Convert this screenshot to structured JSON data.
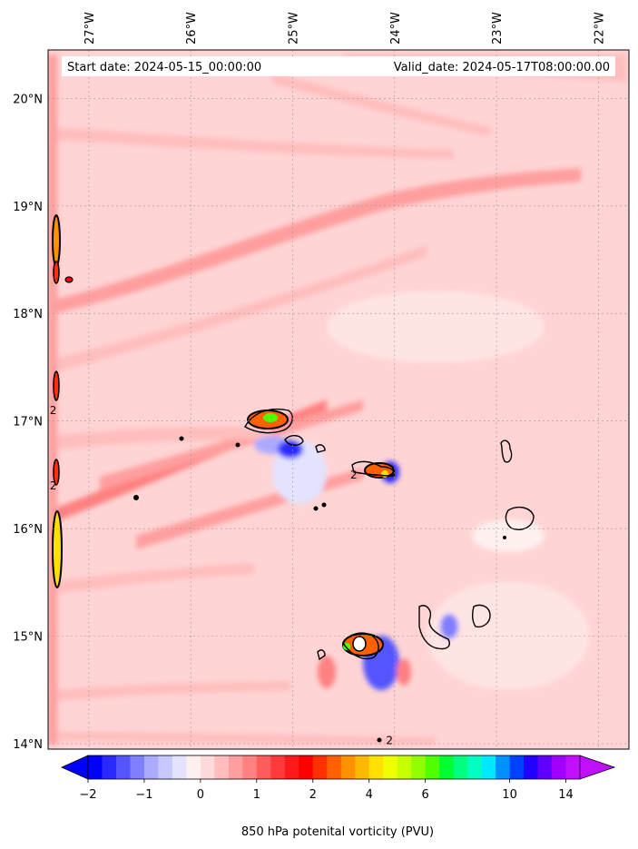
{
  "chart_data": {
    "type": "heatmap",
    "title": "",
    "header_left": "Start date: 2024-05-15_00:00:00",
    "header_right": "Valid_date: 2024-05-17T08:00:00.00",
    "colorbar_label": "850 hPa potenital vorticity (PVU)",
    "x_ticks": [
      {
        "value": -27,
        "label": "27°W"
      },
      {
        "value": -26,
        "label": "26°W"
      },
      {
        "value": -25,
        "label": "25°W"
      },
      {
        "value": -24,
        "label": "24°W"
      },
      {
        "value": -23,
        "label": "23°W"
      },
      {
        "value": -22,
        "label": "22°W"
      }
    ],
    "y_ticks": [
      {
        "value": 20,
        "label": "20°N"
      },
      {
        "value": 19,
        "label": "19°N"
      },
      {
        "value": 18,
        "label": "18°N"
      },
      {
        "value": 17,
        "label": "17°N"
      },
      {
        "value": 16,
        "label": "16°N"
      },
      {
        "value": 15,
        "label": "15°N"
      },
      {
        "value": 14,
        "label": "14°N"
      }
    ],
    "xlim": [
      -27.4,
      -21.7
    ],
    "ylim": [
      13.95,
      20.45
    ],
    "grid": true,
    "colorbar": {
      "levels": [
        -2,
        -1.75,
        -1.5,
        -1.25,
        -1,
        -0.75,
        -0.5,
        -0.25,
        0,
        0.25,
        0.5,
        0.75,
        1,
        1.25,
        1.5,
        1.75,
        2,
        2.5,
        3,
        3.5,
        4,
        4.5,
        5,
        5.5,
        6,
        6.5,
        7,
        7.5,
        8,
        9,
        10,
        11,
        12,
        13,
        14,
        15
      ],
      "colors": [
        "#0000ff",
        "#2a2aff",
        "#5555ff",
        "#7f7fff",
        "#aaaaff",
        "#c8c8ff",
        "#e3e3ff",
        "#fff0f0",
        "#ffdada",
        "#ffbdbd",
        "#ff9e9e",
        "#ff8080",
        "#ff5c5c",
        "#ff3a3a",
        "#ff1a1a",
        "#ff0000",
        "#ff3000",
        "#ff6000",
        "#ff9000",
        "#ffb800",
        "#ffe000",
        "#f0ff00",
        "#c8ff00",
        "#90ff00",
        "#50ff00",
        "#00ff30",
        "#00ff80",
        "#00ffc0",
        "#00e8ff",
        "#0090ff",
        "#0040ff",
        "#2000ff",
        "#6000ff",
        "#a000ff",
        "#c010ff"
      ],
      "extend": "both",
      "tick_labels": [
        {
          "value": -2,
          "label": "−2"
        },
        {
          "value": -1,
          "label": "−1"
        },
        {
          "value": 0,
          "label": "0"
        },
        {
          "value": 1,
          "label": "1"
        },
        {
          "value": 2,
          "label": "2"
        },
        {
          "value": 4,
          "label": "4"
        },
        {
          "value": 6,
          "label": "6"
        },
        {
          "value": 10,
          "label": "10"
        },
        {
          "value": 14,
          "label": "14"
        }
      ]
    },
    "contour_labels": [
      {
        "lon": -27.35,
        "lat": 17.1,
        "label": "2"
      },
      {
        "lon": -27.35,
        "lat": 16.4,
        "label": "2"
      },
      {
        "lon": -24.4,
        "lat": 16.5,
        "label": "2"
      },
      {
        "lon": -24.05,
        "lat": 14.03,
        "label": "2"
      }
    ],
    "background_color": "#ffd4d4"
  }
}
